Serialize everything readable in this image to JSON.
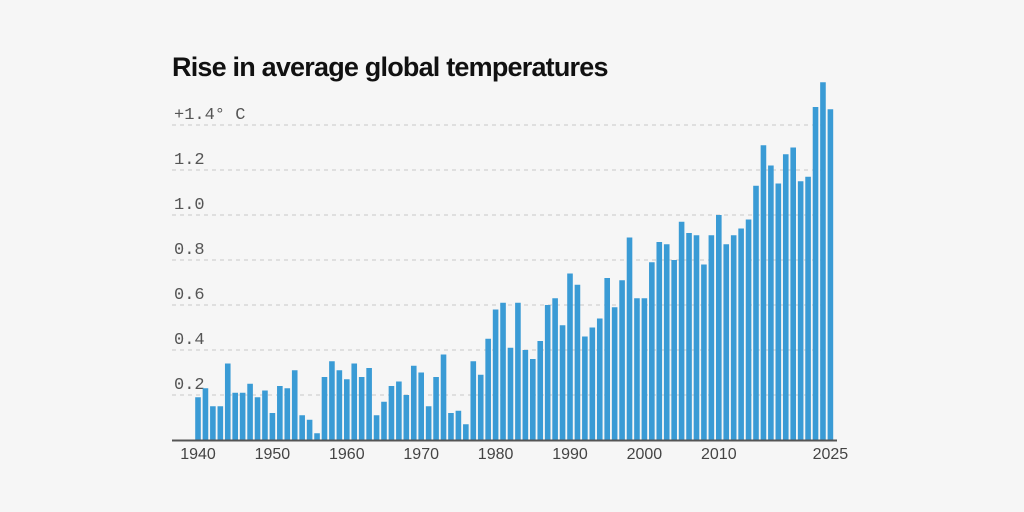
{
  "chart_data": {
    "type": "bar",
    "title": "Rise in average global temperatures",
    "xlabel": "",
    "ylabel": "",
    "ylim": [
      0,
      1.6
    ],
    "grid": true,
    "bar_color": "#3a9bd5",
    "y_ticks": [
      {
        "value": 1.4,
        "label": "+1.4° C"
      },
      {
        "value": 1.2,
        "label": "1.2"
      },
      {
        "value": 1.0,
        "label": "1.0"
      },
      {
        "value": 0.8,
        "label": "0.8"
      },
      {
        "value": 0.6,
        "label": "0.6"
      },
      {
        "value": 0.4,
        "label": "0.4"
      },
      {
        "value": 0.2,
        "label": "0.2"
      }
    ],
    "x_ticks": [
      "1940",
      "1950",
      "1960",
      "1970",
      "1980",
      "1990",
      "2000",
      "2010",
      "2025"
    ],
    "x_start": 1940,
    "values": [
      0.19,
      0.23,
      0.15,
      0.15,
      0.34,
      0.21,
      0.21,
      0.25,
      0.19,
      0.22,
      0.12,
      0.24,
      0.23,
      0.31,
      0.11,
      0.09,
      0.03,
      0.28,
      0.35,
      0.31,
      0.27,
      0.34,
      0.28,
      0.32,
      0.11,
      0.17,
      0.24,
      0.26,
      0.2,
      0.33,
      0.3,
      0.15,
      0.28,
      0.38,
      0.12,
      0.13,
      0.07,
      0.35,
      0.29,
      0.45,
      0.58,
      0.61,
      0.41,
      0.61,
      0.4,
      0.36,
      0.44,
      0.6,
      0.63,
      0.51,
      0.74,
      0.69,
      0.46,
      0.5,
      0.54,
      0.72,
      0.59,
      0.71,
      0.9,
      0.63,
      0.63,
      0.79,
      0.88,
      0.87,
      0.8,
      0.97,
      0.92,
      0.91,
      0.78,
      0.91,
      1.0,
      0.87,
      0.91,
      0.94,
      0.98,
      1.13,
      1.31,
      1.22,
      1.14,
      1.27,
      1.3,
      1.15,
      1.17,
      1.48,
      1.59,
      1.47
    ]
  }
}
